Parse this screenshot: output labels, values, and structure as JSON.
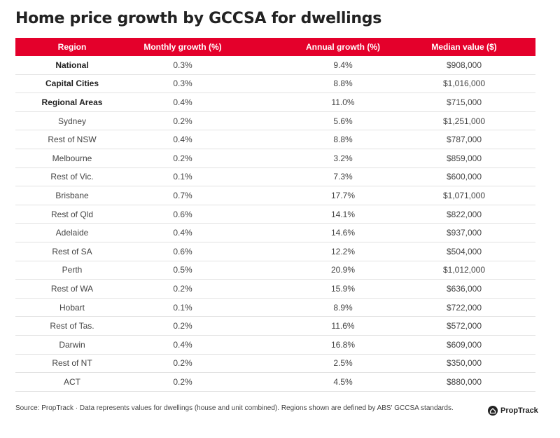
{
  "title": "Home price growth by GCCSA for dwellings",
  "colors": {
    "header": "#e4002b"
  },
  "chart_data": {
    "type": "table",
    "title": "Home price growth by GCCSA for dwellings",
    "columns": [
      "Region",
      "Monthly growth (%)",
      "Annual growth (%)",
      "Median value ($)"
    ],
    "rows": [
      [
        "National",
        "0.3%",
        "9.4%",
        "$908,000"
      ],
      [
        "Capital Cities",
        "0.3%",
        "8.8%",
        "$1,016,000"
      ],
      [
        "Regional Areas",
        "0.4%",
        "11.0%",
        "$715,000"
      ],
      [
        "Sydney",
        "0.2%",
        "5.6%",
        "$1,251,000"
      ],
      [
        "Rest of NSW",
        "0.4%",
        "8.8%",
        "$787,000"
      ],
      [
        "Melbourne",
        "0.2%",
        "3.2%",
        "$859,000"
      ],
      [
        "Rest of Vic.",
        "0.1%",
        "7.3%",
        "$600,000"
      ],
      [
        "Brisbane",
        "0.7%",
        "17.7%",
        "$1,071,000"
      ],
      [
        "Rest of Qld",
        "0.6%",
        "14.1%",
        "$822,000"
      ],
      [
        "Adelaide",
        "0.4%",
        "14.6%",
        "$937,000"
      ],
      [
        "Rest of SA",
        "0.6%",
        "12.2%",
        "$504,000"
      ],
      [
        "Perth",
        "0.5%",
        "20.9%",
        "$1,012,000"
      ],
      [
        "Rest of WA",
        "0.2%",
        "15.9%",
        "$636,000"
      ],
      [
        "Hobart",
        "0.1%",
        "8.9%",
        "$722,000"
      ],
      [
        "Rest of Tas.",
        "0.2%",
        "11.6%",
        "$572,000"
      ],
      [
        "Darwin",
        "0.4%",
        "16.8%",
        "$609,000"
      ],
      [
        "Rest of NT",
        "0.2%",
        "2.5%",
        "$350,000"
      ],
      [
        "ACT",
        "0.2%",
        "4.5%",
        "$880,000"
      ]
    ],
    "bold_rows": 3
  },
  "footer": {
    "source": "Source: PropTrack · Data represents values for dwellings (house and unit combined). Regions shown are defined by ABS' GCCSA standards.",
    "logo": "PropTrack"
  }
}
